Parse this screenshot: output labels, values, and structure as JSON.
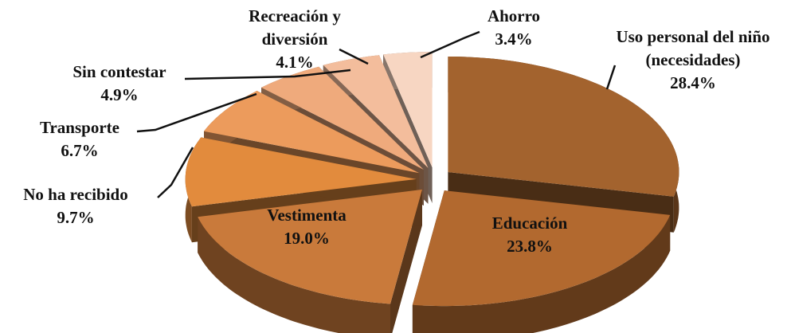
{
  "chart_data": {
    "type": "pie3d",
    "categories": [
      "Uso personal del niño (necesidades)",
      "Educación",
      "Vestimenta",
      "No ha recibido",
      "Transporte",
      "Sin contestar",
      "Recreación y diversión",
      "Ahorro"
    ],
    "values": [
      28.4,
      23.8,
      19.0,
      9.7,
      6.7,
      4.9,
      4.1,
      3.4
    ],
    "value_labels": [
      "28.4%",
      "23.8%",
      "19.0%",
      "9.7%",
      "6.7%",
      "4.9%",
      "4.1%",
      "3.4%"
    ],
    "colors": [
      "#a3632e",
      "#b2692f",
      "#c97a3b",
      "#e28b3d",
      "#ec9b5c",
      "#efaa7c",
      "#f3bd9c",
      "#f7d6c2"
    ]
  }
}
